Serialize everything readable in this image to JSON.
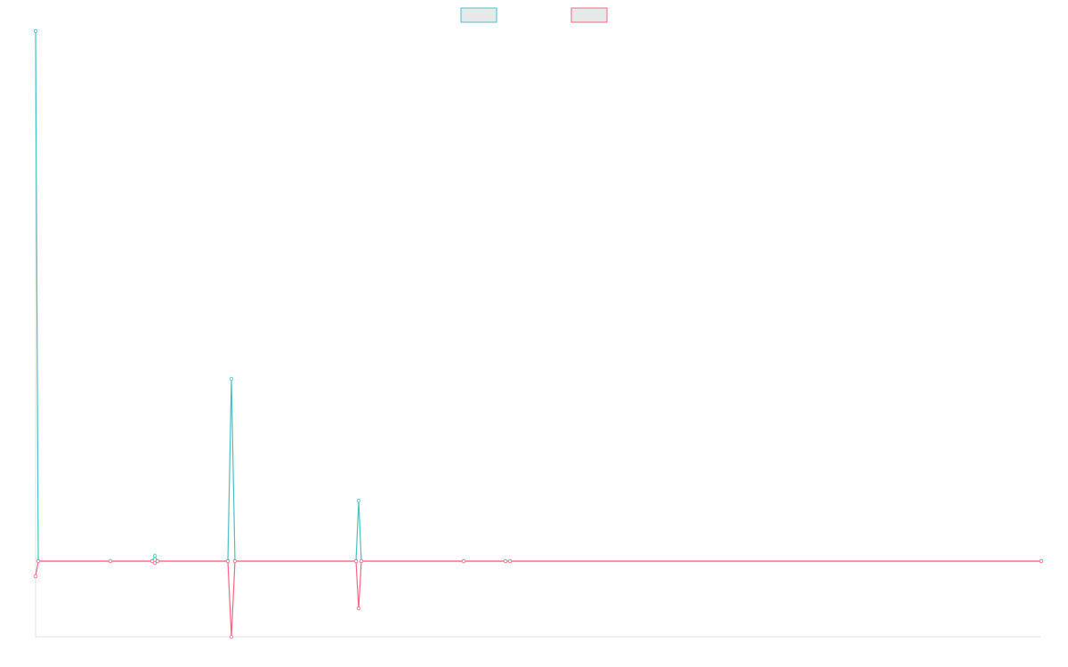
{
  "chart_data": {
    "type": "line",
    "x": [
      0,
      3,
      84,
      131,
      134,
      137,
      216,
      220,
      224,
      360,
      363,
      366,
      481,
      528,
      533,
      1130
    ],
    "xlim": [
      0,
      1130
    ],
    "ylim": [
      -85,
      596
    ],
    "series": [
      {
        "color": "#4bc0c0",
        "values": [
          596,
          0,
          0,
          0,
          6,
          0,
          0,
          205,
          0,
          0,
          68,
          0,
          0,
          0,
          0,
          0
        ]
      },
      {
        "color": "#ff6384",
        "values": [
          -17,
          0,
          0,
          0,
          -2,
          0,
          0,
          -85,
          0,
          0,
          -53,
          0,
          0,
          0,
          0,
          0
        ]
      }
    ],
    "legend": "top"
  }
}
